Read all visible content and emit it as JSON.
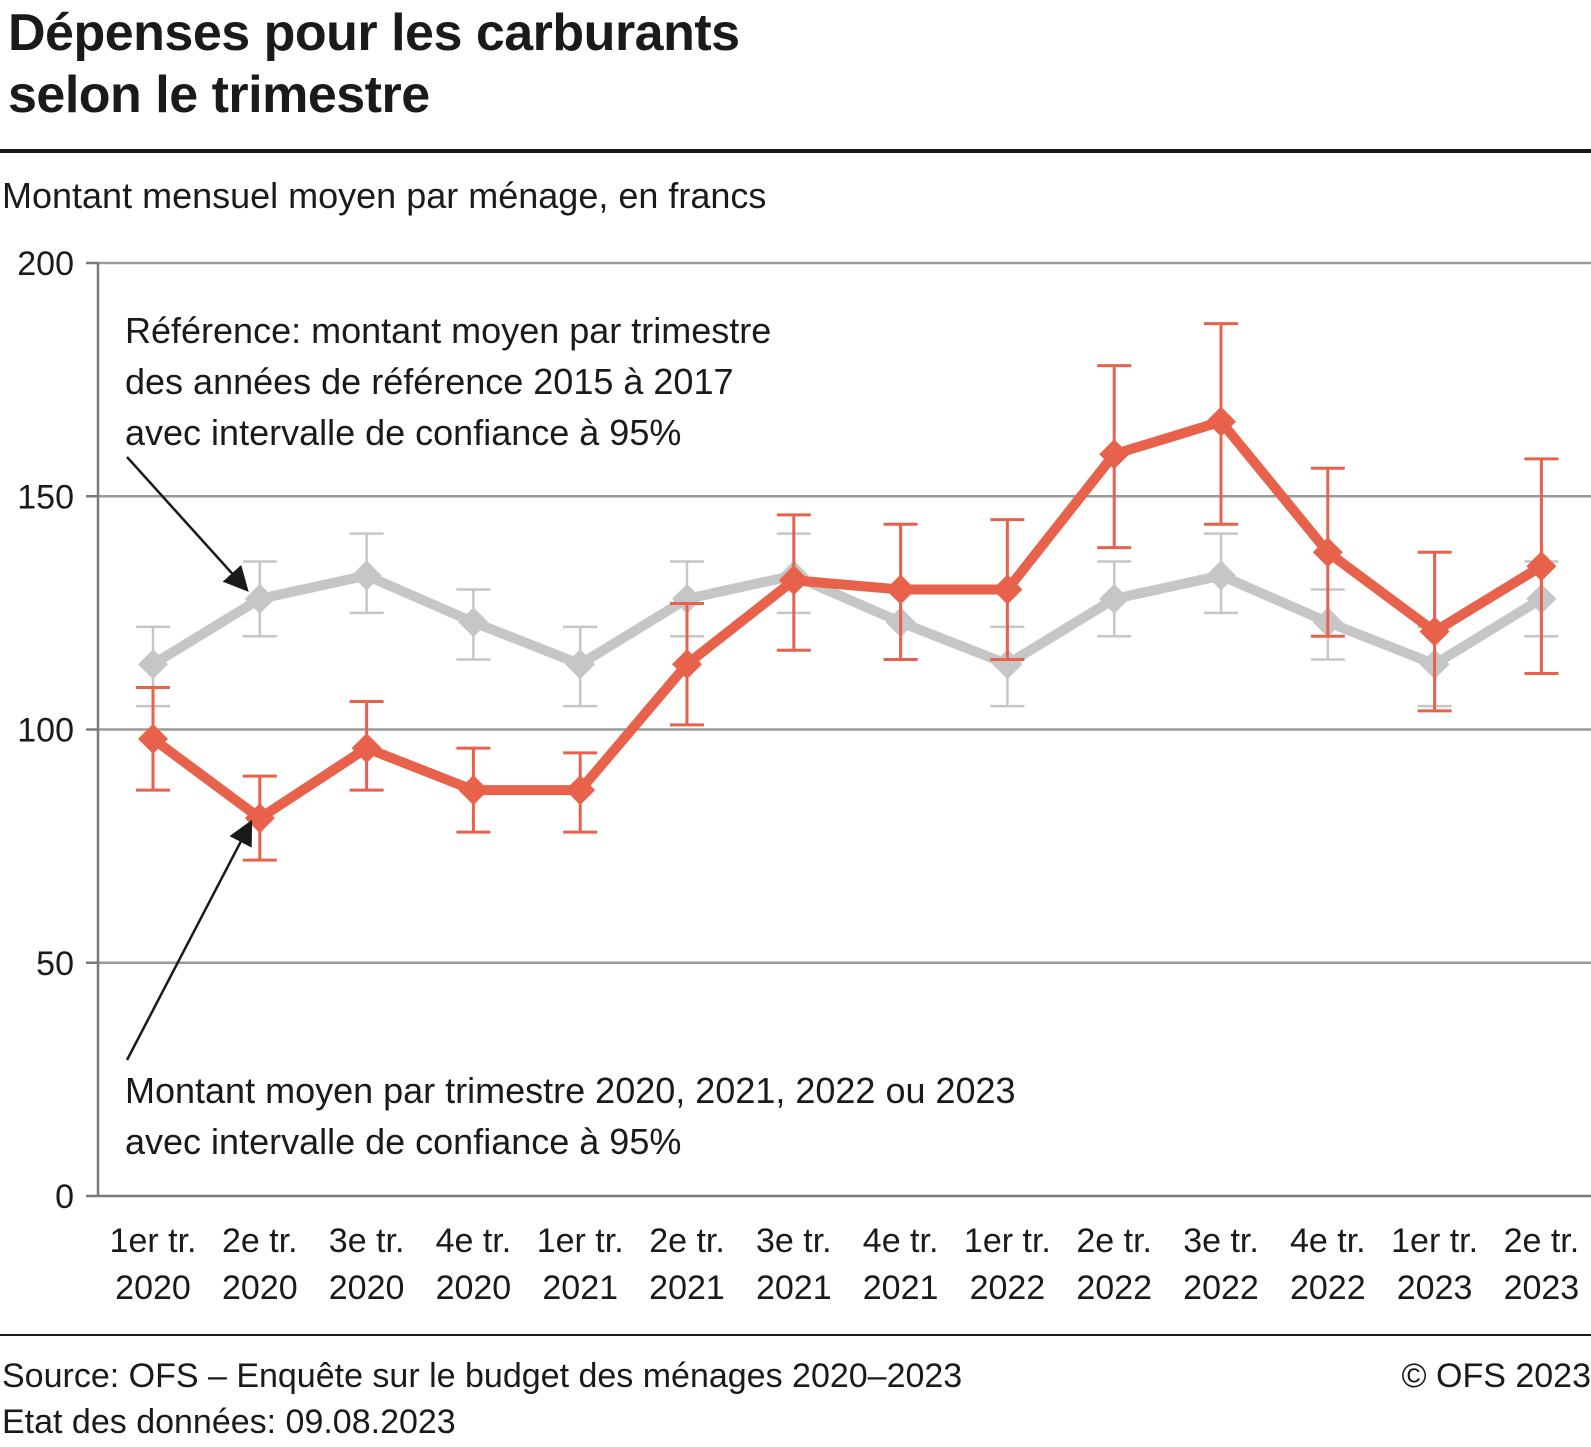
{
  "header": {
    "title_line1": "Dépenses pour les carburants",
    "title_line2": "selon le trimestre",
    "subtitle": "Montant mensuel moyen par ménage, en francs"
  },
  "footer": {
    "source": "Source: OFS – Enquête sur le budget des ménages 2020–2023",
    "date": "Etat des données: 09.08.2023",
    "copyright": "© OFS 2023"
  },
  "colors": {
    "reference": "#c6c6c6",
    "actual": "#e8614b",
    "grid": "#9a9a9a",
    "axis": "#7a7a7a"
  },
  "chart_data": {
    "type": "line",
    "ylim": [
      0,
      200
    ],
    "yticks": [
      0,
      50,
      100,
      150,
      200
    ],
    "grid": true,
    "categories": [
      [
        "1er tr.",
        "2020"
      ],
      [
        "2e tr.",
        "2020"
      ],
      [
        "3e tr.",
        "2020"
      ],
      [
        "4e tr.",
        "2020"
      ],
      [
        "1er tr.",
        "2021"
      ],
      [
        "2e tr.",
        "2021"
      ],
      [
        "3e tr.",
        "2021"
      ],
      [
        "4e tr.",
        "2021"
      ],
      [
        "1er tr.",
        "2022"
      ],
      [
        "2e tr.",
        "2022"
      ],
      [
        "3e tr.",
        "2022"
      ],
      [
        "4e tr.",
        "2022"
      ],
      [
        "1er tr.",
        "2023"
      ],
      [
        "2e tr.",
        "2023"
      ]
    ],
    "series": [
      {
        "key": "reference",
        "values": [
          114,
          128,
          133,
          123,
          114,
          128,
          133,
          123,
          114,
          128,
          133,
          123,
          114,
          128
        ],
        "lower": [
          105,
          120,
          125,
          115,
          105,
          120,
          125,
          115,
          105,
          120,
          125,
          115,
          105,
          120
        ],
        "upper": [
          122,
          136,
          142,
          130,
          122,
          136,
          142,
          130,
          122,
          136,
          142,
          130,
          122,
          136
        ]
      },
      {
        "key": "actual",
        "values": [
          98,
          81,
          96,
          87,
          87,
          114,
          132,
          130,
          130,
          159,
          166,
          138,
          121,
          135
        ],
        "lower": [
          87,
          72,
          87,
          78,
          78,
          101,
          117,
          115,
          115,
          139,
          144,
          120,
          104,
          112
        ],
        "upper": [
          109,
          90,
          106,
          96,
          95,
          127,
          146,
          144,
          145,
          178,
          187,
          156,
          138,
          158
        ]
      }
    ],
    "annotations": [
      {
        "key": "reference",
        "lines": [
          "Référence: montant moyen par trimestre",
          "des années de référence 2015 à 2017",
          "avec intervalle de confiance à 95%"
        ]
      },
      {
        "key": "actual",
        "lines": [
          "Montant moyen par trimestre 2020, 2021, 2022 ou 2023",
          "avec intervalle de confiance à 95%"
        ]
      }
    ]
  }
}
